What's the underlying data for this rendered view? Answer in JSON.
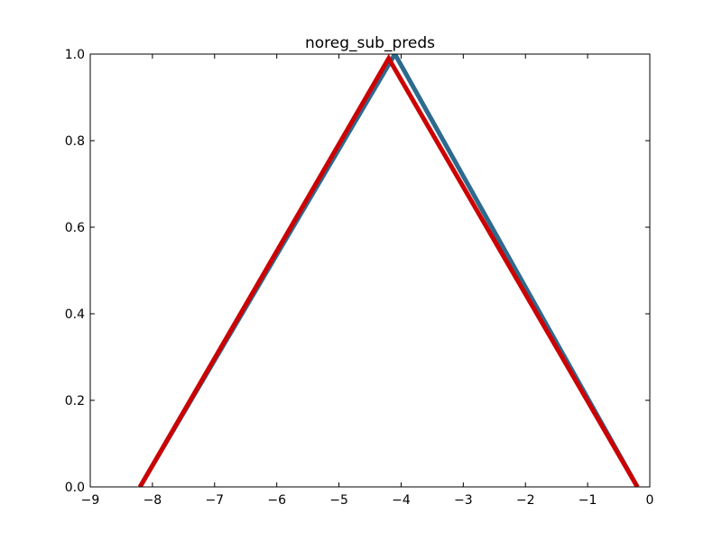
{
  "chart_data": {
    "type": "line",
    "title": "noreg_sub_preds",
    "xlabel": "",
    "ylabel": "",
    "xlim": [
      -9,
      0
    ],
    "ylim": [
      0,
      1
    ],
    "xticks": [
      -9,
      -8,
      -7,
      -6,
      -5,
      -4,
      -3,
      -2,
      -1,
      0
    ],
    "xtick_labels": [
      "−9",
      "−8",
      "−7",
      "−6",
      "−5",
      "−4",
      "−3",
      "−2",
      "−1",
      "0"
    ],
    "yticks": [
      0,
      0.2,
      0.4,
      0.6,
      0.8,
      1.0
    ],
    "ytick_labels": [
      "0.0",
      "0.2",
      "0.4",
      "0.6",
      "0.8",
      "1.0"
    ],
    "grid": false,
    "legend": false,
    "series": [
      {
        "color": "#2e6a8e",
        "x": [
          -8.2,
          -4.1,
          -0.2
        ],
        "y": [
          0.0,
          1.0,
          0.0
        ]
      },
      {
        "color": "#cc0000",
        "x": [
          -8.2,
          -4.2,
          -0.2
        ],
        "y": [
          0.0,
          0.99,
          0.0
        ]
      }
    ]
  }
}
